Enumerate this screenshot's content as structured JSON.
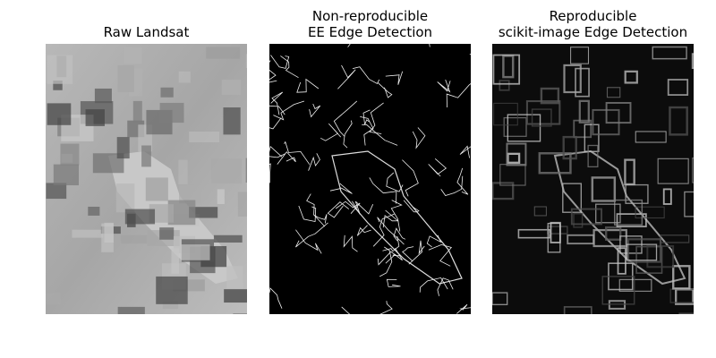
{
  "panels": [
    {
      "title": [
        "Raw Landsat"
      ]
    },
    {
      "title": [
        "Non-reproducible",
        "EE Edge Detection"
      ]
    },
    {
      "title": [
        "Reproducible",
        "scikit-image Edge Detection"
      ]
    }
  ]
}
